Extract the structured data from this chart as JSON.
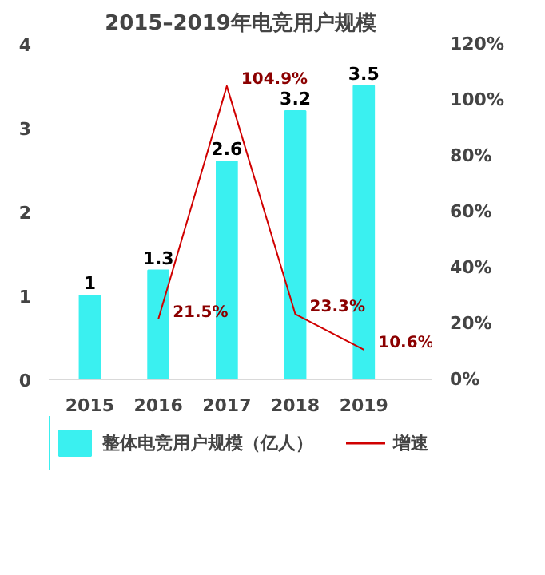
{
  "chart_data": {
    "type": "bar",
    "title": "2015–2019年电竞用户规模",
    "categories": [
      "2015",
      "2016",
      "2017",
      "2018",
      "2019"
    ],
    "series": [
      {
        "name": "整体电竞用户规模（亿人）",
        "color": "#3af0f0",
        "values": [
          1,
          1.3,
          2.6,
          3.2,
          3.5
        ],
        "value_labels": [
          "1",
          "1.3",
          "2.6",
          "3.2",
          "3.5"
        ]
      },
      {
        "name": "增速",
        "type": "line",
        "axis": "y2",
        "color": "#d00000",
        "values": [
          null,
          21.5,
          104.9,
          23.3,
          10.6
        ],
        "value_labels": [
          null,
          "21.5%",
          "104.9%",
          "23.3%",
          "10.6%"
        ]
      }
    ],
    "ylim": [
      0,
      4
    ],
    "yticks": [
      0,
      1,
      2,
      3,
      4
    ],
    "y2lim": [
      0,
      120
    ],
    "y2ticks": [
      {
        "value": 0,
        "label": "0%"
      },
      {
        "value": 20,
        "label": "20%"
      },
      {
        "value": 40,
        "label": "40%"
      },
      {
        "value": 60,
        "label": "60%"
      },
      {
        "value": 80,
        "label": "80%"
      },
      {
        "value": 100,
        "label": "100%"
      },
      {
        "value": 120,
        "label": "120%"
      }
    ],
    "grid": false,
    "legend": "bottom"
  }
}
